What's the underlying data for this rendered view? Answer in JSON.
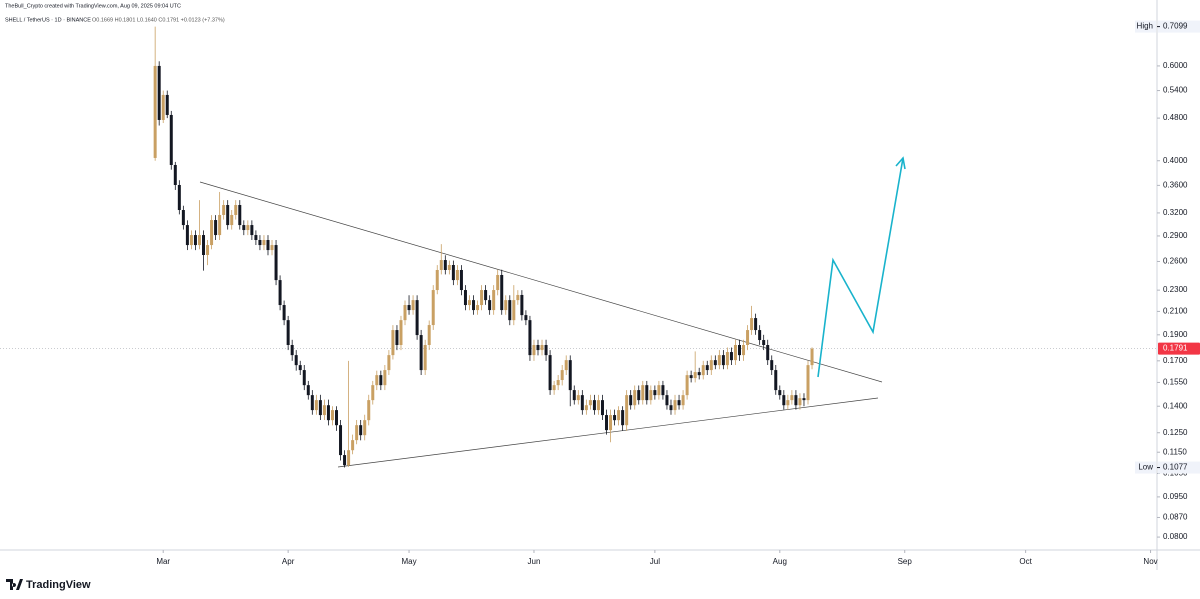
{
  "header": {
    "credit": "TheBull_Crypto created with TradingView.com, Aug 09, 2025 09:04 UTC",
    "symbol": "SHELL / TetherUS · 1D · BINANCE",
    "ohlc": "O0.1669 H0.1801 L0.1640 C0.1791 +0.0123 (+7.37%)"
  },
  "footer": {
    "brand": "TradingView"
  },
  "chart_data": {
    "type": "candlestick",
    "log_scale": true,
    "up_color": "#c9a063",
    "down_color": "#131722",
    "open": [
      0.4048,
      0.6,
      0.4762,
      0.53,
      0.4865,
      0.3928,
      0.3606,
      0.324,
      0.3038,
      0.2789,
      0.2911,
      0.2789,
      0.2911,
      0.2673,
      0.2789,
      0.3104,
      0.2911,
      0.3172,
      0.331,
      0.3038,
      0.3172,
      0.331,
      0.3038,
      0.2974,
      0.3038,
      0.2911,
      0.285,
      0.2789,
      0.285,
      0.273,
      0.2789,
      0.2401,
      0.2158,
      0.2023,
      0.1819,
      0.1742,
      0.1669,
      0.1634,
      0.1532,
      0.1468,
      0.1377,
      0.1437,
      0.1348,
      0.1406,
      0.1319,
      0.1377,
      0.1291,
      0.1136,
      0.1088,
      0.116,
      0.1211,
      0.1291,
      0.1237,
      0.1319,
      0.1437,
      0.1532,
      0.1599,
      0.1532,
      0.1634,
      0.1742,
      0.1939,
      0.1819,
      0.2023,
      0.2158,
      0.2112,
      0.2204,
      0.1898,
      0.1634,
      0.1819,
      0.1981,
      0.2301,
      0.2507,
      0.2616,
      0.2507,
      0.2561,
      0.2401,
      0.2507,
      0.2301,
      0.2158,
      0.2204,
      0.2112,
      0.2158,
      0.2301,
      0.2204,
      0.2112,
      0.2301,
      0.2454,
      0.2112,
      0.2204,
      0.2023,
      0.2204,
      0.2253,
      0.2067,
      0.2023,
      0.1742,
      0.1819,
      0.178,
      0.1819,
      0.1742,
      0.15,
      0.1532,
      0.1566,
      0.1634,
      0.1705,
      0.15,
      0.1437,
      0.1468,
      0.1377,
      0.1406,
      0.1437,
      0.1377,
      0.1437,
      0.1348,
      0.1264,
      0.1348,
      0.1319,
      0.1377,
      0.1291,
      0.1468,
      0.1406,
      0.15,
      0.1437,
      0.1532,
      0.1437,
      0.15,
      0.1468,
      0.1532,
      0.1468,
      0.1406,
      0.1377,
      0.1437,
      0.1406,
      0.1468,
      0.1599,
      0.1579,
      0.162,
      0.1599,
      0.1669,
      0.1634,
      0.1705,
      0.1669,
      0.1742,
      0.1669,
      0.1765,
      0.1705,
      0.1819,
      0.1742,
      0.1819,
      0.1939,
      0.2041,
      0.1939,
      0.1858,
      0.1819,
      0.1705,
      0.1634,
      0.15,
      0.1468,
      0.1406,
      0.1437,
      0.1468,
      0.1406,
      0.1449,
      0.1437,
      0.1669
    ],
    "high": [
      0.7099,
      0.612,
      0.54,
      0.54,
      0.495,
      0.398,
      0.368,
      0.33,
      0.31,
      0.297,
      0.297,
      0.338,
      0.297,
      0.285,
      0.317,
      0.317,
      0.35,
      0.338,
      0.338,
      0.324,
      0.338,
      0.338,
      0.31,
      0.31,
      0.31,
      0.297,
      0.291,
      0.291,
      0.291,
      0.285,
      0.285,
      0.245,
      0.22,
      0.206,
      0.186,
      0.178,
      0.17,
      0.167,
      0.156,
      0.15,
      0.147,
      0.147,
      0.144,
      0.144,
      0.14,
      0.14,
      0.132,
      0.116,
      0.17,
      0.124,
      0.132,
      0.132,
      0.135,
      0.147,
      0.156,
      0.163,
      0.163,
      0.167,
      0.178,
      0.198,
      0.198,
      0.206,
      0.22,
      0.225,
      0.225,
      0.225,
      0.194,
      0.186,
      0.202,
      0.235,
      0.256,
      0.28,
      0.267,
      0.261,
      0.261,
      0.256,
      0.256,
      0.235,
      0.225,
      0.225,
      0.22,
      0.235,
      0.235,
      0.225,
      0.235,
      0.251,
      0.251,
      0.225,
      0.225,
      0.235,
      0.23,
      0.23,
      0.211,
      0.206,
      0.186,
      0.186,
      0.186,
      0.186,
      0.178,
      0.156,
      0.16,
      0.167,
      0.174,
      0.174,
      0.153,
      0.15,
      0.15,
      0.144,
      0.147,
      0.147,
      0.147,
      0.147,
      0.138,
      0.138,
      0.138,
      0.14,
      0.14,
      0.15,
      0.15,
      0.153,
      0.153,
      0.156,
      0.156,
      0.153,
      0.153,
      0.156,
      0.156,
      0.15,
      0.144,
      0.147,
      0.147,
      0.15,
      0.163,
      0.163,
      0.177,
      0.165,
      0.17,
      0.17,
      0.174,
      0.174,
      0.178,
      0.178,
      0.18,
      0.18,
      0.186,
      0.186,
      0.186,
      0.198,
      0.215,
      0.208,
      0.198,
      0.19,
      0.186,
      0.174,
      0.167,
      0.153,
      0.15,
      0.147,
      0.15,
      0.15,
      0.148,
      0.148,
      0.17,
      0.1801
    ],
    "low": [
      0.4,
      0.465,
      0.47,
      0.48,
      0.385,
      0.353,
      0.318,
      0.298,
      0.273,
      0.274,
      0.273,
      0.274,
      0.25,
      0.256,
      0.274,
      0.285,
      0.285,
      0.311,
      0.298,
      0.298,
      0.311,
      0.298,
      0.291,
      0.291,
      0.285,
      0.279,
      0.273,
      0.273,
      0.267,
      0.267,
      0.235,
      0.211,
      0.198,
      0.178,
      0.17,
      0.163,
      0.16,
      0.15,
      0.144,
      0.135,
      0.135,
      0.132,
      0.132,
      0.129,
      0.129,
      0.126,
      0.111,
      0.1077,
      0.108,
      0.114,
      0.119,
      0.121,
      0.121,
      0.129,
      0.141,
      0.15,
      0.15,
      0.15,
      0.16,
      0.171,
      0.178,
      0.178,
      0.198,
      0.207,
      0.207,
      0.186,
      0.16,
      0.16,
      0.178,
      0.194,
      0.226,
      0.246,
      0.246,
      0.246,
      0.235,
      0.235,
      0.225,
      0.211,
      0.211,
      0.207,
      0.207,
      0.211,
      0.216,
      0.207,
      0.207,
      0.225,
      0.207,
      0.207,
      0.198,
      0.198,
      0.216,
      0.202,
      0.198,
      0.17,
      0.17,
      0.174,
      0.174,
      0.17,
      0.147,
      0.147,
      0.15,
      0.153,
      0.16,
      0.14,
      0.141,
      0.141,
      0.135,
      0.135,
      0.138,
      0.135,
      0.135,
      0.132,
      0.124,
      0.12,
      0.129,
      0.129,
      0.126,
      0.126,
      0.138,
      0.138,
      0.141,
      0.141,
      0.141,
      0.141,
      0.144,
      0.144,
      0.144,
      0.138,
      0.135,
      0.135,
      0.138,
      0.138,
      0.144,
      0.155,
      0.155,
      0.157,
      0.157,
      0.16,
      0.16,
      0.164,
      0.164,
      0.164,
      0.164,
      0.167,
      0.167,
      0.17,
      0.17,
      0.178,
      0.19,
      0.19,
      0.182,
      0.178,
      0.167,
      0.16,
      0.147,
      0.144,
      0.138,
      0.138,
      0.141,
      0.138,
      0.138,
      0.14,
      0.141,
      0.164
    ],
    "close": [
      0.6,
      0.4762,
      0.53,
      0.4865,
      0.3928,
      0.3606,
      0.324,
      0.3038,
      0.2789,
      0.2911,
      0.2789,
      0.2911,
      0.2673,
      0.2789,
      0.3104,
      0.2911,
      0.3172,
      0.331,
      0.3038,
      0.3172,
      0.331,
      0.3038,
      0.2974,
      0.3038,
      0.2911,
      0.285,
      0.2789,
      0.285,
      0.273,
      0.2789,
      0.2401,
      0.2158,
      0.2023,
      0.1819,
      0.1742,
      0.1669,
      0.1634,
      0.1532,
      0.1468,
      0.1377,
      0.1437,
      0.1348,
      0.1406,
      0.1319,
      0.1377,
      0.1291,
      0.1136,
      0.1088,
      0.116,
      0.1211,
      0.1291,
      0.1237,
      0.1319,
      0.1437,
      0.1532,
      0.1599,
      0.1532,
      0.1634,
      0.1742,
      0.1939,
      0.1819,
      0.2023,
      0.2158,
      0.2112,
      0.2204,
      0.1898,
      0.1634,
      0.1819,
      0.1981,
      0.2301,
      0.2507,
      0.2616,
      0.2507,
      0.2561,
      0.2401,
      0.2507,
      0.2301,
      0.2158,
      0.2204,
      0.2112,
      0.2158,
      0.2301,
      0.2204,
      0.2112,
      0.2301,
      0.2454,
      0.2112,
      0.2204,
      0.2023,
      0.2204,
      0.2253,
      0.2067,
      0.2023,
      0.1742,
      0.1819,
      0.178,
      0.1819,
      0.1742,
      0.15,
      0.1532,
      0.1566,
      0.1634,
      0.1705,
      0.15,
      0.1437,
      0.1468,
      0.1377,
      0.1406,
      0.1437,
      0.1377,
      0.1437,
      0.1348,
      0.1264,
      0.1348,
      0.1319,
      0.1377,
      0.1291,
      0.1468,
      0.1406,
      0.15,
      0.1437,
      0.1532,
      0.1437,
      0.15,
      0.1468,
      0.1532,
      0.1468,
      0.1406,
      0.1377,
      0.1437,
      0.1406,
      0.1468,
      0.1599,
      0.1579,
      0.162,
      0.1599,
      0.1669,
      0.1634,
      0.1705,
      0.1669,
      0.1742,
      0.1669,
      0.1765,
      0.1705,
      0.1819,
      0.1742,
      0.1819,
      0.1939,
      0.2041,
      0.1939,
      0.1858,
      0.1819,
      0.1705,
      0.1634,
      0.15,
      0.1468,
      0.1406,
      0.1437,
      0.1468,
      0.1406,
      0.1449,
      0.1437,
      0.1669,
      0.1791
    ],
    "xlim": [
      -38.5,
      248.6
    ],
    "xticks": [
      {
        "value": 2,
        "label": "Mar"
      },
      {
        "value": 33,
        "label": "Apr"
      },
      {
        "value": 63,
        "label": "May"
      },
      {
        "value": 94,
        "label": "Jun"
      },
      {
        "value": 124,
        "label": "Jul"
      },
      {
        "value": 155,
        "label": "Aug"
      },
      {
        "value": 186,
        "label": "Sep"
      },
      {
        "value": 216,
        "label": "Oct"
      },
      {
        "value": 247,
        "label": "Nov"
      }
    ],
    "ylim": [
      0.0757,
      0.746
    ],
    "yticks": [
      {
        "value": 0.6,
        "label": "0.6000"
      },
      {
        "value": 0.54,
        "label": "0.5400"
      },
      {
        "value": 0.48,
        "label": "0.4800"
      },
      {
        "value": 0.4,
        "label": "0.4000"
      },
      {
        "value": 0.36,
        "label": "0.3600"
      },
      {
        "value": 0.32,
        "label": "0.3200"
      },
      {
        "value": 0.29,
        "label": "0.2900"
      },
      {
        "value": 0.26,
        "label": "0.2600"
      },
      {
        "value": 0.23,
        "label": "0.2300"
      },
      {
        "value": 0.21,
        "label": "0.2100"
      },
      {
        "value": 0.19,
        "label": "0.1900"
      },
      {
        "value": 0.17,
        "label": "0.1700"
      },
      {
        "value": 0.155,
        "label": "0.1550"
      },
      {
        "value": 0.14,
        "label": "0.1400"
      },
      {
        "value": 0.125,
        "label": "0.1250"
      },
      {
        "value": 0.115,
        "label": "0.1150"
      },
      {
        "value": 0.105,
        "label": "0.1050"
      },
      {
        "value": 0.095,
        "label": "0.0950"
      },
      {
        "value": 0.087,
        "label": "0.0870"
      },
      {
        "value": 0.08,
        "label": "0.0800"
      }
    ],
    "high_marker": {
      "label": "High",
      "value": 0.7099
    },
    "low_marker": {
      "label": "Low",
      "value": 0.1077
    },
    "last_price": {
      "value": 0.1791,
      "color": "#f23645"
    }
  }
}
